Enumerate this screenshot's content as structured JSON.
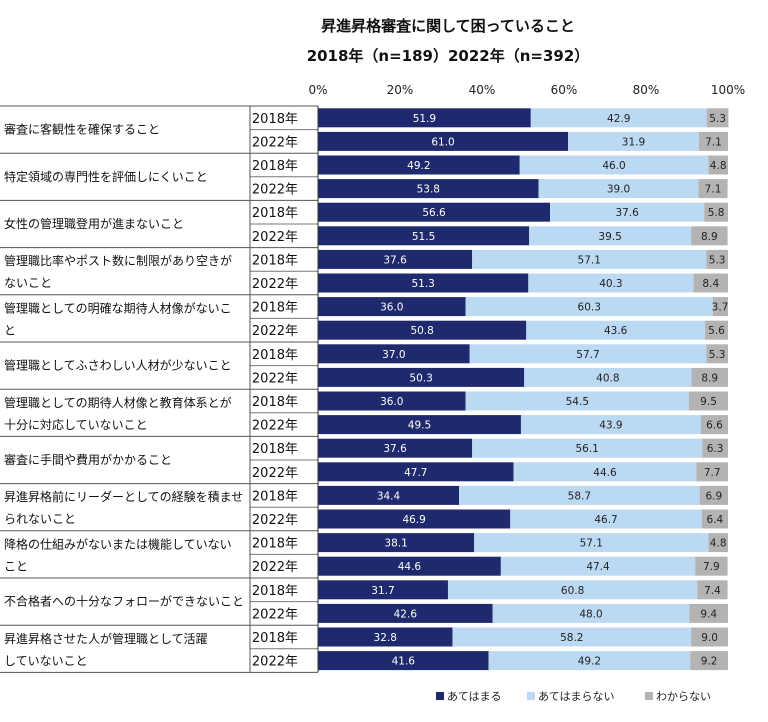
{
  "chart_data": {
    "type": "bar",
    "orientation": "horizontal",
    "stacked": true,
    "percent_scale": true,
    "title": "昇進昇格審査に関して困っていること",
    "subtitle": "2018年（n=189）2022年（n=392）",
    "xlim": [
      0,
      100
    ],
    "ticks": [
      "0%",
      "20%",
      "40%",
      "60%",
      "80%",
      "100%"
    ],
    "tick_values": [
      0,
      20,
      40,
      60,
      80,
      100
    ],
    "series": [
      {
        "name": "あてはまる",
        "color": "#1f2a6e",
        "text_color": "#ffffff"
      },
      {
        "name": "あてはまらない",
        "color": "#bcd9f4",
        "text_color": "#222222"
      },
      {
        "name": "わからない",
        "color": "#b3b3b3",
        "text_color": "#222222"
      }
    ],
    "categories": [
      {
        "lines": [
          "審査に客観性を確保すること"
        ],
        "rows": [
          {
            "year": "2018年",
            "values": [
              51.9,
              42.9,
              5.3
            ],
            "labels": [
              "51.9",
              "42.9",
              "5.3"
            ]
          },
          {
            "year": "2022年",
            "values": [
              61.0,
              31.9,
              7.1
            ],
            "labels": [
              "61.0",
              "31.9",
              "7.1"
            ]
          }
        ]
      },
      {
        "lines": [
          "特定領域の専門性を評価しにくいこと"
        ],
        "rows": [
          {
            "year": "2018年",
            "values": [
              49.2,
              46.0,
              4.8
            ],
            "labels": [
              "49.2",
              "46.0",
              "4.8"
            ]
          },
          {
            "year": "2022年",
            "values": [
              53.8,
              39.0,
              7.1
            ],
            "labels": [
              "53.8",
              "39.0",
              "7.1"
            ]
          }
        ]
      },
      {
        "lines": [
          "女性の管理職登用が進まないこと"
        ],
        "rows": [
          {
            "year": "2018年",
            "values": [
              56.6,
              37.6,
              5.8
            ],
            "labels": [
              "56.6",
              "37.6",
              "5.8"
            ]
          },
          {
            "year": "2022年",
            "values": [
              51.5,
              39.5,
              8.9
            ],
            "labels": [
              "51.5",
              "39.5",
              "8.9"
            ]
          }
        ]
      },
      {
        "lines": [
          "管理職比率やポスト数に制限があり空きが",
          "ないこと"
        ],
        "rows": [
          {
            "year": "2018年",
            "values": [
              37.6,
              57.1,
              5.3
            ],
            "labels": [
              "37.6",
              "57.1",
              "5.3"
            ]
          },
          {
            "year": "2022年",
            "values": [
              51.3,
              40.3,
              8.4
            ],
            "labels": [
              "51.3",
              "40.3",
              "8.4"
            ]
          }
        ]
      },
      {
        "lines": [
          "管理職としての明確な期待人材像がないこ",
          "と"
        ],
        "rows": [
          {
            "year": "2018年",
            "values": [
              36.0,
              60.3,
              3.7
            ],
            "labels": [
              "36.0",
              "60.3",
              "3.7"
            ]
          },
          {
            "year": "2022年",
            "values": [
              50.8,
              43.6,
              5.6
            ],
            "labels": [
              "50.8",
              "43.6",
              "5.6"
            ]
          }
        ]
      },
      {
        "lines": [
          "管理職としてふさわしい人材が少ないこと"
        ],
        "rows": [
          {
            "year": "2018年",
            "values": [
              37.0,
              57.7,
              5.3
            ],
            "labels": [
              "37.0",
              "57.7",
              "5.3"
            ]
          },
          {
            "year": "2022年",
            "values": [
              50.3,
              40.8,
              8.9
            ],
            "labels": [
              "50.3",
              "40.8",
              "8.9"
            ]
          }
        ]
      },
      {
        "lines": [
          "管理職としての期待人材像と教育体系とが",
          "十分に対応していないこと"
        ],
        "rows": [
          {
            "year": "2018年",
            "values": [
              36.0,
              54.5,
              9.5
            ],
            "labels": [
              "36.0",
              "54.5",
              "9.5"
            ]
          },
          {
            "year": "2022年",
            "values": [
              49.5,
              43.9,
              6.6
            ],
            "labels": [
              "49.5",
              "43.9",
              "6.6"
            ]
          }
        ]
      },
      {
        "lines": [
          "審査に手間や費用がかかること"
        ],
        "rows": [
          {
            "year": "2018年",
            "values": [
              37.6,
              56.1,
              6.3
            ],
            "labels": [
              "37.6",
              "56.1",
              "6.3"
            ]
          },
          {
            "year": "2022年",
            "values": [
              47.7,
              44.6,
              7.7
            ],
            "labels": [
              "47.7",
              "44.6",
              "7.7"
            ]
          }
        ]
      },
      {
        "lines": [
          "昇進昇格前にリーダーとしての経験を積ませ",
          "られないこと"
        ],
        "rows": [
          {
            "year": "2018年",
            "values": [
              34.4,
              58.7,
              6.9
            ],
            "labels": [
              "34.4",
              "58.7",
              "6.9"
            ]
          },
          {
            "year": "2022年",
            "values": [
              46.9,
              46.7,
              6.4
            ],
            "labels": [
              "46.9",
              "46.7",
              "6.4"
            ]
          }
        ]
      },
      {
        "lines": [
          "降格の仕組みがないまたは機能していない",
          "こと"
        ],
        "rows": [
          {
            "year": "2018年",
            "values": [
              38.1,
              57.1,
              4.8
            ],
            "labels": [
              "38.1",
              "57.1",
              "4.8"
            ]
          },
          {
            "year": "2022年",
            "values": [
              44.6,
              47.4,
              7.9
            ],
            "labels": [
              "44.6",
              "47.4",
              "7.9"
            ]
          }
        ]
      },
      {
        "lines": [
          "不合格者への十分なフォローができないこと"
        ],
        "rows": [
          {
            "year": "2018年",
            "values": [
              31.7,
              60.8,
              7.4
            ],
            "labels": [
              "31.7",
              "60.8",
              "7.4"
            ]
          },
          {
            "year": "2022年",
            "values": [
              42.6,
              48.0,
              9.4
            ],
            "labels": [
              "42.6",
              "48.0",
              "9.4"
            ]
          }
        ]
      },
      {
        "lines": [
          "昇進昇格させた人が管理職として活躍",
          "していないこと"
        ],
        "rows": [
          {
            "year": "2018年",
            "values": [
              32.8,
              58.2,
              9.0
            ],
            "labels": [
              "32.8",
              "58.2",
              "9.0"
            ]
          },
          {
            "year": "2022年",
            "values": [
              41.6,
              49.2,
              9.2
            ],
            "labels": [
              "41.6",
              "49.2",
              "9.2"
            ]
          }
        ]
      }
    ]
  }
}
